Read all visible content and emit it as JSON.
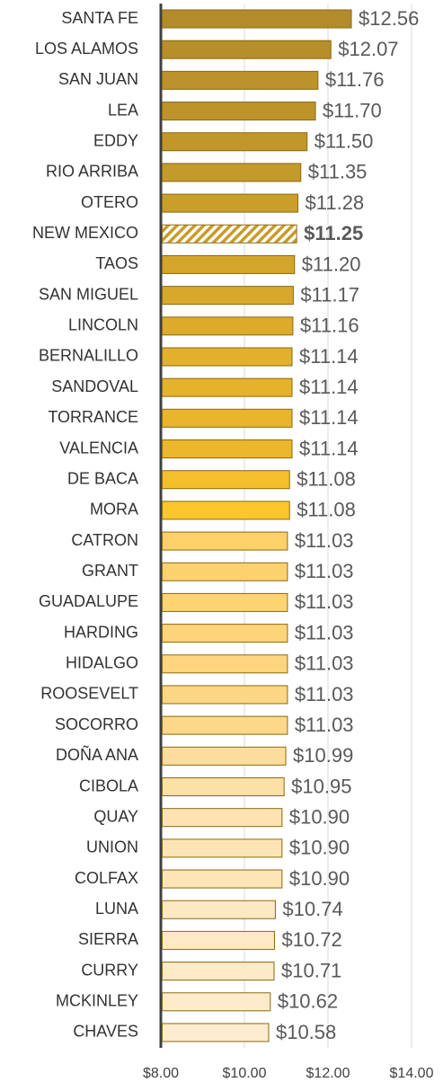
{
  "chart_data": {
    "type": "barh",
    "categories": [
      "SANTA FE",
      "LOS ALAMOS",
      "SAN JUAN",
      "LEA",
      "EDDY",
      "RIO ARRIBA",
      "OTERO",
      "NEW MEXICO",
      "TAOS",
      "SAN MIGUEL",
      "LINCOLN",
      "BERNALILLO",
      "SANDOVAL",
      "TORRANCE",
      "VALENCIA",
      "DE BACA",
      "MORA",
      "CATRON",
      "GRANT",
      "GUADALUPE",
      "HARDING",
      "HIDALGO",
      "ROOSEVELT",
      "SOCORRO",
      "DOÑA ANA",
      "CIBOLA",
      "QUAY",
      "UNION",
      "COLFAX",
      "LUNA",
      "SIERRA",
      "CURRY",
      "MCKINLEY",
      "CHAVES"
    ],
    "values": [
      12.56,
      12.07,
      11.76,
      11.7,
      11.5,
      11.35,
      11.28,
      11.25,
      11.2,
      11.17,
      11.16,
      11.14,
      11.14,
      11.14,
      11.14,
      11.08,
      11.08,
      11.03,
      11.03,
      11.03,
      11.03,
      11.03,
      11.03,
      11.03,
      10.99,
      10.95,
      10.9,
      10.9,
      10.9,
      10.74,
      10.72,
      10.71,
      10.62,
      10.58
    ],
    "value_labels": [
      "$12.56",
      "$12.07",
      "$11.76",
      "$11.70",
      "$11.50",
      "$11.35",
      "$11.28",
      "$11.25",
      "$11.20",
      "$11.17",
      "$11.16",
      "$11.14",
      "$11.14",
      "$11.14",
      "$11.14",
      "$11.08",
      "$11.08",
      "$11.03",
      "$11.03",
      "$11.03",
      "$11.03",
      "$11.03",
      "$11.03",
      "$11.03",
      "$10.99",
      "$10.95",
      "$10.90",
      "$10.90",
      "$10.90",
      "$10.74",
      "$10.72",
      "$10.71",
      "$10.62",
      "$10.58"
    ],
    "colors": [
      "#b38b2a",
      "#b68e2a",
      "#bb922b",
      "#bd932a",
      "#c29729",
      "#c49a2a",
      "#c99e2b",
      "#c89b2a",
      "#d3a52b",
      "#d8a82b",
      "#dcab2c",
      "#e2b02c",
      "#e5b22c",
      "#e9b52c",
      "#ecb72c",
      "#f5bf2c",
      "#fcc62c",
      "#fdd06a",
      "#fdd16f",
      "#fdd374",
      "#fdd47a",
      "#fdd57e",
      "#fdd683",
      "#fdd888",
      "#fddd9c",
      "#fde0a6",
      "#fde3b0",
      "#fde4b4",
      "#fde5b8",
      "#fde8c4",
      "#fde9c6",
      "#fdeac9",
      "#fdebcc",
      "#fdeccf"
    ],
    "hatched_bars": [
      7
    ],
    "xlim": [
      8,
      14
    ],
    "xticks": [
      {
        "value": 8,
        "label": "$8.00"
      },
      {
        "value": 10,
        "label": "$10.00"
      },
      {
        "value": 12,
        "label": "$12.00"
      },
      {
        "value": 14,
        "label": "$14.00"
      }
    ],
    "grid": true
  }
}
